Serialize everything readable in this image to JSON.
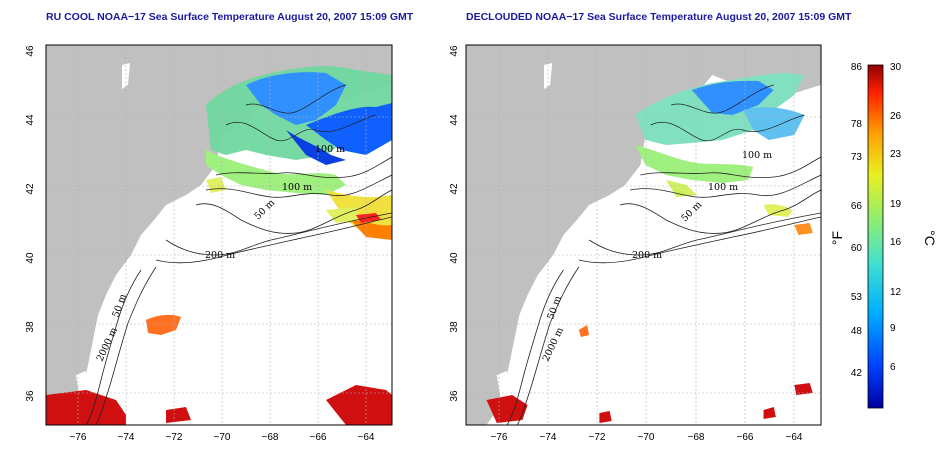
{
  "panels": [
    {
      "title": "RU COOL NOAA−17 Sea Surface Temperature August 20, 2007 15:09 GMT",
      "contour_labels": [
        "100 m",
        "100 m",
        "50 m",
        "200 m",
        "50 m",
        "2000 m"
      ]
    },
    {
      "title": "DECLOUDED NOAA−17 Sea Surface Temperature August 20, 2007 15:09 GMT",
      "contour_labels": [
        "100 m",
        "100 m",
        "50 m",
        "200 m",
        "50 m",
        "2000 m"
      ]
    }
  ],
  "axes": {
    "x_ticks": [
      "−76",
      "−74",
      "−72",
      "−70",
      "−68",
      "−66",
      "−64"
    ],
    "y_ticks": [
      "46",
      "44",
      "42",
      "40",
      "38",
      "36"
    ]
  },
  "colorbar": {
    "fahrenheit_ticks": [
      "86",
      "78",
      "73",
      "66",
      "60",
      "53",
      "48",
      "42"
    ],
    "celsius_ticks": [
      "30",
      "26",
      "23",
      "19",
      "16",
      "12",
      "9",
      "6"
    ],
    "fahrenheit_unit": "°F",
    "celsius_unit": "°C"
  },
  "colors": {
    "land": "#c0c0c0",
    "ocean": "#ffffff",
    "title": "#1a1aa0"
  }
}
